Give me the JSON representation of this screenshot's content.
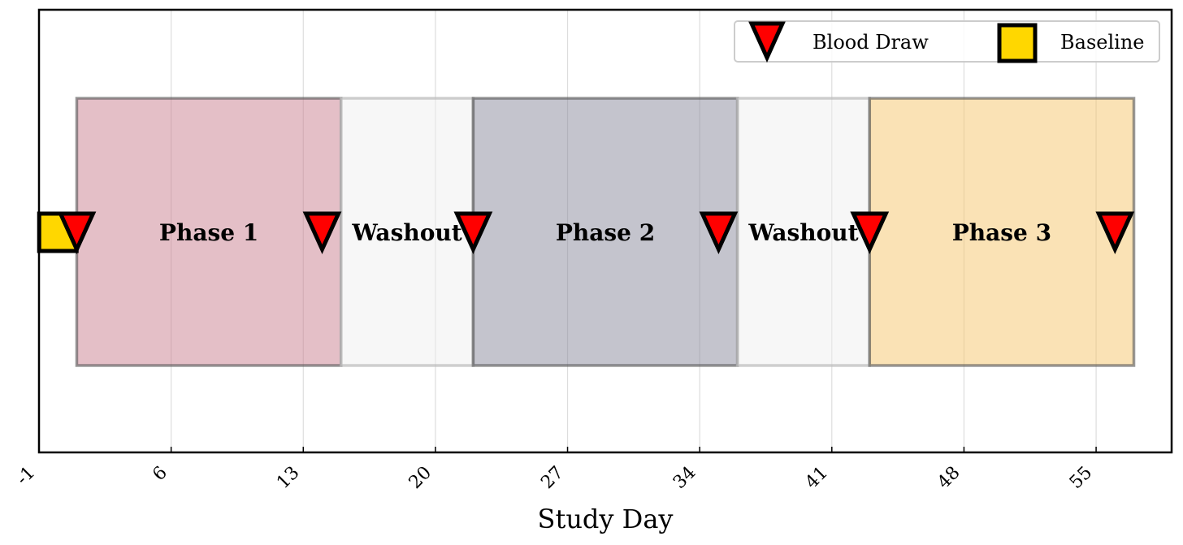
{
  "chart_data": {
    "type": "timeline",
    "xlabel": "Study Day",
    "xlim": [
      -1,
      59
    ],
    "xticks": [
      -1,
      6,
      13,
      20,
      27,
      34,
      41,
      48,
      55
    ],
    "grid": true,
    "legend_position": "top-right",
    "legend": [
      {
        "label": "Blood Draw",
        "marker": "triangle-down",
        "color": "#ff0000"
      },
      {
        "label": "Baseline",
        "marker": "square",
        "color": "#ffd700"
      }
    ],
    "segments": [
      {
        "label": "Phase 1",
        "start": 1,
        "end": 15,
        "color": "#c9808f",
        "kind": "phase"
      },
      {
        "label": "Washout",
        "start": 15,
        "end": 22,
        "color": "#eeeeee",
        "kind": "washout"
      },
      {
        "label": "Phase 2",
        "start": 22,
        "end": 36,
        "color": "#8a8a9c",
        "kind": "phase"
      },
      {
        "label": "Washout",
        "start": 36,
        "end": 43,
        "color": "#eeeeee",
        "kind": "washout"
      },
      {
        "label": "Phase 3",
        "start": 43,
        "end": 57,
        "color": "#f5c56b",
        "kind": "phase"
      }
    ],
    "baseline": {
      "label": "Baseline",
      "day": 0
    },
    "blood_draws": [
      1,
      14,
      22,
      35,
      43,
      56
    ]
  }
}
